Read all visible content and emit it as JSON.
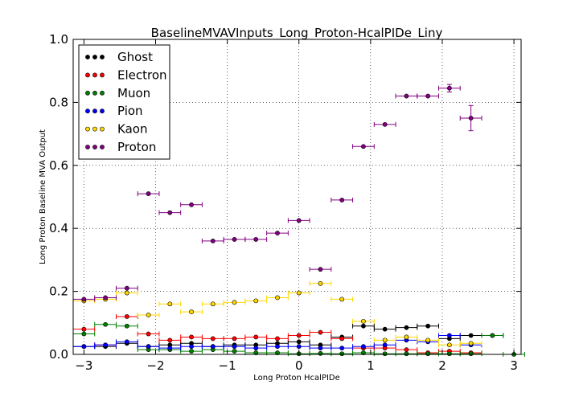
{
  "chart_data": {
    "type": "scatter",
    "title": "BaselineMVAVInputs_Long_Proton-HcalPIDe_Liny",
    "xlabel": "Long Proton HcalPIDe",
    "ylabel": "Long Proton Baseline MVA Output",
    "xlim": [
      -3.15,
      3.1
    ],
    "ylim": [
      0.0,
      1.0
    ],
    "xticks": [
      -3,
      -2,
      -1,
      0,
      1,
      2,
      3
    ],
    "xtick_labels": [
      "−3",
      "−2",
      "−1",
      "0",
      "1",
      "2",
      "3"
    ],
    "yticks": [
      0.0,
      0.2,
      0.4,
      0.6,
      0.8,
      1.0
    ],
    "ytick_labels": [
      "0.0",
      "0.2",
      "0.4",
      "0.6",
      "0.8",
      "1.0"
    ],
    "grid": true,
    "legend_position": "top-left",
    "bin_half_width": 0.15,
    "series": [
      {
        "name": "Ghost",
        "color": "#000000",
        "x": [
          -3.0,
          -2.7,
          -2.4,
          -2.1,
          -1.8,
          -1.5,
          -1.2,
          -0.9,
          -0.6,
          -0.3,
          0.0,
          0.3,
          0.6,
          0.9,
          1.2,
          1.5,
          1.8,
          2.1,
          2.4,
          2.7
        ],
        "y": [
          0.025,
          0.025,
          0.035,
          0.025,
          0.03,
          0.035,
          0.025,
          0.03,
          0.03,
          0.035,
          0.04,
          0.03,
          0.055,
          0.09,
          0.08,
          0.085,
          0.09,
          0.05,
          0.06,
          0.06
        ]
      },
      {
        "name": "Electron",
        "color": "#ff0000",
        "x": [
          -3.0,
          -2.7,
          -2.4,
          -2.1,
          -1.8,
          -1.5,
          -1.2,
          -0.9,
          -0.6,
          -0.3,
          0.0,
          0.3,
          0.6,
          0.9,
          1.2,
          1.5,
          1.8,
          2.1,
          2.4
        ],
        "y": [
          0.08,
          0.03,
          0.12,
          0.065,
          0.045,
          0.055,
          0.05,
          0.05,
          0.055,
          0.05,
          0.06,
          0.07,
          0.05,
          0.02,
          0.02,
          0.015,
          0.005,
          0.01,
          0.005
        ]
      },
      {
        "name": "Muon",
        "color": "#008000",
        "x": [
          -3.0,
          -2.7,
          -2.4,
          -2.1,
          -1.8,
          -1.5,
          -1.2,
          -0.9,
          -0.6,
          -0.3,
          0.0,
          0.3,
          0.6,
          0.9,
          1.2,
          1.5,
          1.8,
          2.1,
          2.4,
          2.7,
          3.0
        ],
        "y": [
          0.065,
          0.095,
          0.09,
          0.015,
          0.015,
          0.01,
          0.015,
          0.01,
          0.005,
          0.005,
          0.002,
          0.003,
          0.002,
          0.005,
          0.002,
          0.002,
          0.002,
          0.002,
          0.002,
          0.06,
          0.0
        ]
      },
      {
        "name": "Pion",
        "color": "#0000ff",
        "x": [
          -3.0,
          -2.7,
          -2.4,
          -2.1,
          -1.8,
          -1.5,
          -1.2,
          -0.9,
          -0.6,
          -0.3,
          0.0,
          0.3,
          0.6,
          0.9,
          1.2,
          1.5,
          1.8,
          2.1,
          2.4
        ],
        "y": [
          0.025,
          0.03,
          0.04,
          0.025,
          0.02,
          0.025,
          0.025,
          0.025,
          0.02,
          0.025,
          0.025,
          0.02,
          0.02,
          0.025,
          0.03,
          0.045,
          0.04,
          0.06,
          0.03
        ]
      },
      {
        "name": "Kaon",
        "color": "#ffd700",
        "x": [
          -3.0,
          -2.7,
          -2.4,
          -2.1,
          -1.8,
          -1.5,
          -1.2,
          -0.9,
          -0.6,
          -0.3,
          0.0,
          0.3,
          0.6,
          0.9,
          1.2,
          1.5,
          1.8,
          2.1,
          2.4
        ],
        "y": [
          0.17,
          0.175,
          0.195,
          0.125,
          0.16,
          0.135,
          0.16,
          0.165,
          0.17,
          0.18,
          0.195,
          0.225,
          0.175,
          0.105,
          0.045,
          0.055,
          0.045,
          0.03,
          0.035
        ]
      },
      {
        "name": "Proton",
        "color": "#800080",
        "x": [
          -3.0,
          -2.7,
          -2.4,
          -2.1,
          -1.8,
          -1.5,
          -1.2,
          -0.9,
          -0.6,
          -0.3,
          0.0,
          0.3,
          0.6,
          0.9,
          1.2,
          1.5,
          1.8,
          2.1,
          2.4
        ],
        "y": [
          0.175,
          0.18,
          0.21,
          0.51,
          0.45,
          0.475,
          0.36,
          0.365,
          0.365,
          0.385,
          0.425,
          0.27,
          0.49,
          0.66,
          0.73,
          0.82,
          0.82,
          0.845,
          0.75
        ],
        "yerr": [
          0,
          0,
          0,
          0,
          0,
          0,
          0,
          0,
          0,
          0,
          0,
          0,
          0,
          0,
          0,
          0,
          0,
          0.012,
          0.04
        ]
      }
    ]
  }
}
